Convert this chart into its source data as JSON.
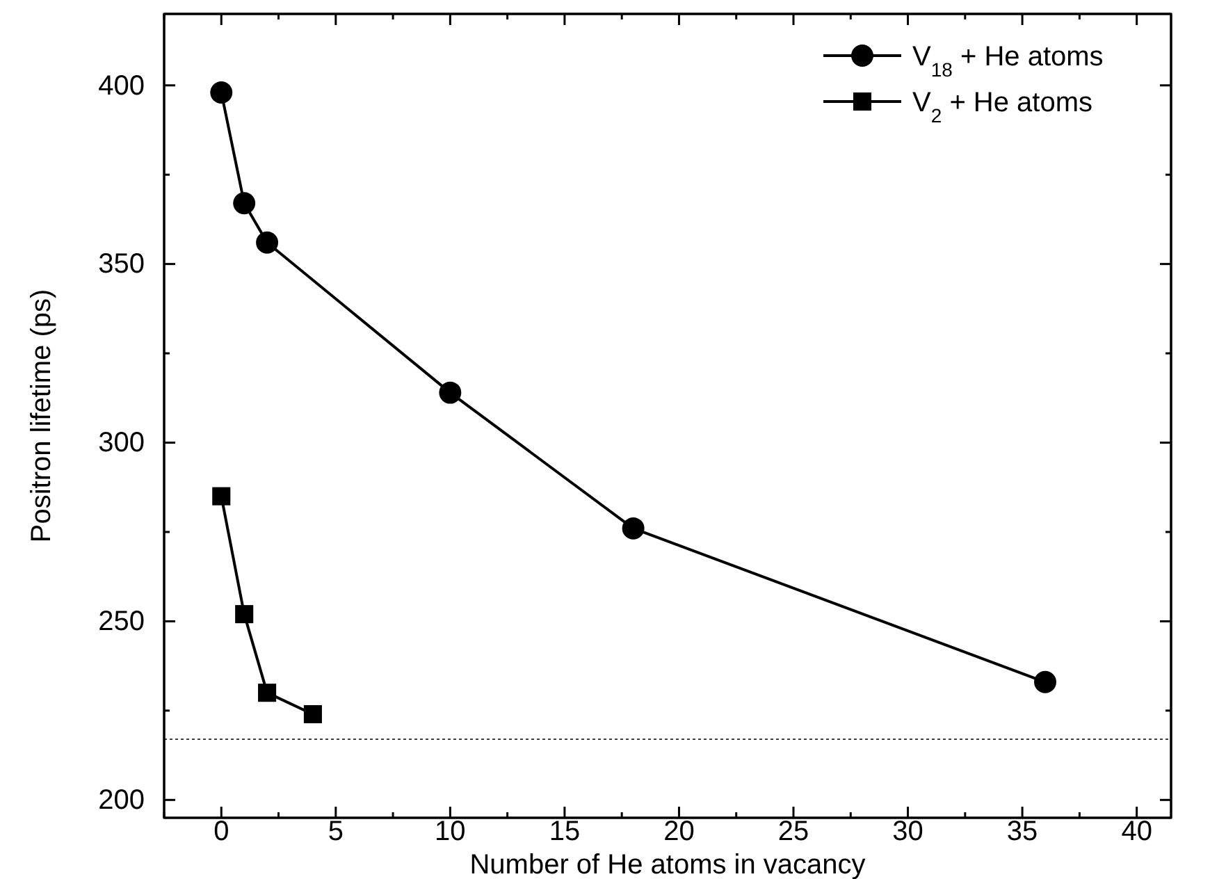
{
  "chart_data": {
    "type": "line",
    "xlabel": "Number of He atoms in vacancy",
    "ylabel": "Positron lifetime (ps)",
    "xlim": [
      -2.5,
      41.5
    ],
    "ylim": [
      195,
      420
    ],
    "xticks": [
      {
        "value": -2.5,
        "label": null
      },
      0,
      {
        "value": 2.5,
        "label": null
      },
      5,
      {
        "value": 7.5,
        "label": null
      },
      10,
      {
        "value": 12.5,
        "label": null
      },
      15,
      {
        "value": 17.5,
        "label": null
      },
      20,
      {
        "value": 22.5,
        "label": null
      },
      25,
      {
        "value": 27.5,
        "label": null
      },
      30,
      {
        "value": 32.5,
        "label": null
      },
      35,
      {
        "value": 37.5,
        "label": null
      },
      40
    ],
    "yticks": [
      200,
      {
        "value": 225,
        "label": null
      },
      250,
      {
        "value": 275,
        "label": null
      },
      300,
      {
        "value": 325,
        "label": null
      },
      350,
      {
        "value": 375,
        "label": null
      },
      400
    ],
    "grid": false,
    "legend": "top right",
    "line_style": "solid",
    "series": [
      {
        "name": "V$_{18}$ + He atoms",
        "color": "#000000",
        "marker": "circle",
        "x": [
          0,
          1,
          2,
          10,
          18,
          36
        ],
        "values": [
          398,
          367,
          356,
          314,
          276,
          233
        ]
      },
      {
        "name": "V$_{2}$ + He atoms",
        "color": "#000000",
        "marker": "square",
        "x": [
          0,
          1,
          2,
          4
        ],
        "values": [
          285,
          252,
          230,
          224
        ]
      }
    ],
    "ref_lines": [
      {
        "axis": "y",
        "value": 217,
        "color": "#000000",
        "line_style": "dotted"
      }
    ]
  }
}
